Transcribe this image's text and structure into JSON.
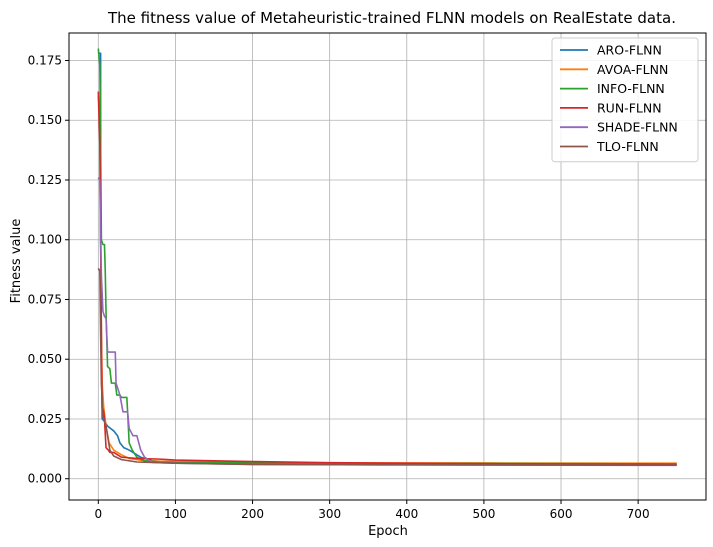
{
  "chart_data": {
    "type": "line",
    "title": "The fitness value of Metaheuristic-trained FLNN models on RealEstate data.",
    "xlabel": "Epoch",
    "ylabel": "Fitness value",
    "xlim": [
      -38,
      788
    ],
    "ylim": [
      -0.0089,
      0.1865
    ],
    "xticks": [
      0,
      100,
      200,
      300,
      400,
      500,
      600,
      700
    ],
    "yticks": [
      0.0,
      0.025,
      0.05,
      0.075,
      0.1,
      0.125,
      0.15,
      0.175
    ],
    "ytick_labels": [
      "0.000",
      "0.025",
      "0.050",
      "0.075",
      "0.100",
      "0.125",
      "0.150",
      "0.175"
    ],
    "grid": true,
    "legend_position": "top-right",
    "series": [
      {
        "name": "ARO-FLNN",
        "color": "#1f77b4",
        "points": [
          [
            0,
            0.178
          ],
          [
            3,
            0.178
          ],
          [
            3,
            0.12
          ],
          [
            4,
            0.05
          ],
          [
            5,
            0.025
          ],
          [
            8,
            0.024
          ],
          [
            12,
            0.022
          ],
          [
            16,
            0.021
          ],
          [
            20,
            0.02
          ],
          [
            25,
            0.018
          ],
          [
            28,
            0.015
          ],
          [
            33,
            0.013
          ],
          [
            40,
            0.012
          ],
          [
            45,
            0.011
          ],
          [
            55,
            0.009
          ],
          [
            70,
            0.0075
          ],
          [
            100,
            0.0068
          ],
          [
            200,
            0.0064
          ],
          [
            400,
            0.006
          ],
          [
            600,
            0.006
          ],
          [
            750,
            0.006
          ]
        ]
      },
      {
        "name": "AVOA-FLNN",
        "color": "#ff7f0e",
        "points": [
          [
            0,
            0.16
          ],
          [
            2,
            0.15
          ],
          [
            3,
            0.1
          ],
          [
            4,
            0.06
          ],
          [
            5,
            0.04
          ],
          [
            7,
            0.03
          ],
          [
            10,
            0.022
          ],
          [
            14,
            0.015
          ],
          [
            20,
            0.012
          ],
          [
            30,
            0.01
          ],
          [
            40,
            0.0085
          ],
          [
            60,
            0.0075
          ],
          [
            100,
            0.0072
          ],
          [
            200,
            0.0068
          ],
          [
            300,
            0.0066
          ],
          [
            500,
            0.0066
          ],
          [
            750,
            0.0065
          ]
        ]
      },
      {
        "name": "INFO-FLNN",
        "color": "#2ca02c",
        "points": [
          [
            0,
            0.18
          ],
          [
            2,
            0.173
          ],
          [
            3,
            0.14
          ],
          [
            4,
            0.1
          ],
          [
            6,
            0.098
          ],
          [
            8,
            0.098
          ],
          [
            9,
            0.087
          ],
          [
            10,
            0.07
          ],
          [
            12,
            0.047
          ],
          [
            15,
            0.046
          ],
          [
            17,
            0.04
          ],
          [
            22,
            0.04
          ],
          [
            24,
            0.035
          ],
          [
            28,
            0.035
          ],
          [
            30,
            0.034
          ],
          [
            37,
            0.034
          ],
          [
            38,
            0.028
          ],
          [
            40,
            0.015
          ],
          [
            44,
            0.012
          ],
          [
            50,
            0.009
          ],
          [
            60,
            0.0075
          ],
          [
            80,
            0.007
          ],
          [
            100,
            0.0068
          ],
          [
            300,
            0.0065
          ],
          [
            750,
            0.0062
          ]
        ]
      },
      {
        "name": "RUN-FLNN",
        "color": "#d62728",
        "points": [
          [
            0,
            0.162
          ],
          [
            2,
            0.14
          ],
          [
            3,
            0.1
          ],
          [
            4,
            0.06
          ],
          [
            5,
            0.03
          ],
          [
            7,
            0.028
          ],
          [
            8,
            0.025
          ],
          [
            10,
            0.013
          ],
          [
            13,
            0.012
          ],
          [
            15,
            0.011
          ],
          [
            20,
            0.011
          ],
          [
            25,
            0.01
          ],
          [
            30,
            0.009
          ],
          [
            50,
            0.0085
          ],
          [
            80,
            0.0082
          ],
          [
            100,
            0.0078
          ],
          [
            150,
            0.0075
          ],
          [
            200,
            0.0072
          ],
          [
            300,
            0.0067
          ],
          [
            500,
            0.0063
          ],
          [
            750,
            0.006
          ]
        ]
      },
      {
        "name": "SHADE-FLNN",
        "color": "#9467bd",
        "points": [
          [
            0,
            0.126
          ],
          [
            2,
            0.125
          ],
          [
            3,
            0.1
          ],
          [
            4,
            0.085
          ],
          [
            6,
            0.07
          ],
          [
            8,
            0.068
          ],
          [
            10,
            0.067
          ],
          [
            12,
            0.053
          ],
          [
            16,
            0.053
          ],
          [
            22,
            0.053
          ],
          [
            23,
            0.04
          ],
          [
            26,
            0.037
          ],
          [
            28,
            0.035
          ],
          [
            32,
            0.028
          ],
          [
            38,
            0.028
          ],
          [
            40,
            0.021
          ],
          [
            45,
            0.018
          ],
          [
            50,
            0.018
          ],
          [
            55,
            0.012
          ],
          [
            60,
            0.009
          ],
          [
            70,
            0.0068
          ],
          [
            100,
            0.0065
          ],
          [
            200,
            0.006
          ],
          [
            400,
            0.0058
          ],
          [
            750,
            0.0056
          ]
        ]
      },
      {
        "name": "TLO-FLNN",
        "color": "#8c564b",
        "points": [
          [
            0,
            0.088
          ],
          [
            2,
            0.087
          ],
          [
            3,
            0.06
          ],
          [
            4,
            0.04
          ],
          [
            6,
            0.026
          ],
          [
            8,
            0.024
          ],
          [
            10,
            0.022
          ],
          [
            15,
            0.012
          ],
          [
            20,
            0.0095
          ],
          [
            30,
            0.008
          ],
          [
            50,
            0.007
          ],
          [
            100,
            0.0065
          ],
          [
            200,
            0.006
          ],
          [
            400,
            0.0058
          ],
          [
            750,
            0.0057
          ]
        ]
      }
    ]
  }
}
